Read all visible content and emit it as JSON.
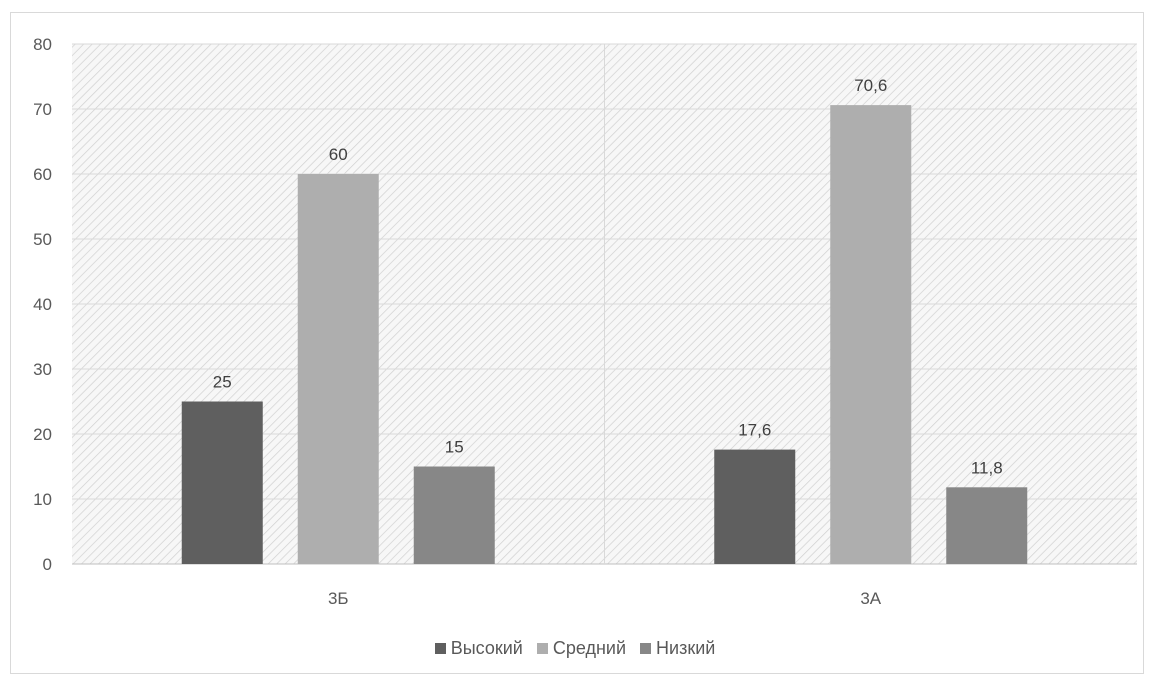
{
  "chart_data": {
    "type": "bar",
    "categories": [
      "3Б",
      "3А"
    ],
    "series": [
      {
        "name": "Высокий",
        "values": [
          25,
          17.6
        ],
        "labels": [
          "25",
          "17,6"
        ],
        "color": "#5f5f5f"
      },
      {
        "name": "Средний",
        "values": [
          60,
          70.6
        ],
        "labels": [
          "60",
          "70,6"
        ],
        "color": "#aeaeae"
      },
      {
        "name": "Низкий",
        "values": [
          15,
          11.8
        ],
        "labels": [
          "15",
          "11,8"
        ],
        "color": "#878787"
      }
    ],
    "ylim": [
      0,
      80
    ],
    "yticks": [
      0,
      10,
      20,
      30,
      40,
      50,
      60,
      70,
      80
    ],
    "grid": true,
    "plot_background": "hatched light gray",
    "legend_position": "bottom"
  }
}
